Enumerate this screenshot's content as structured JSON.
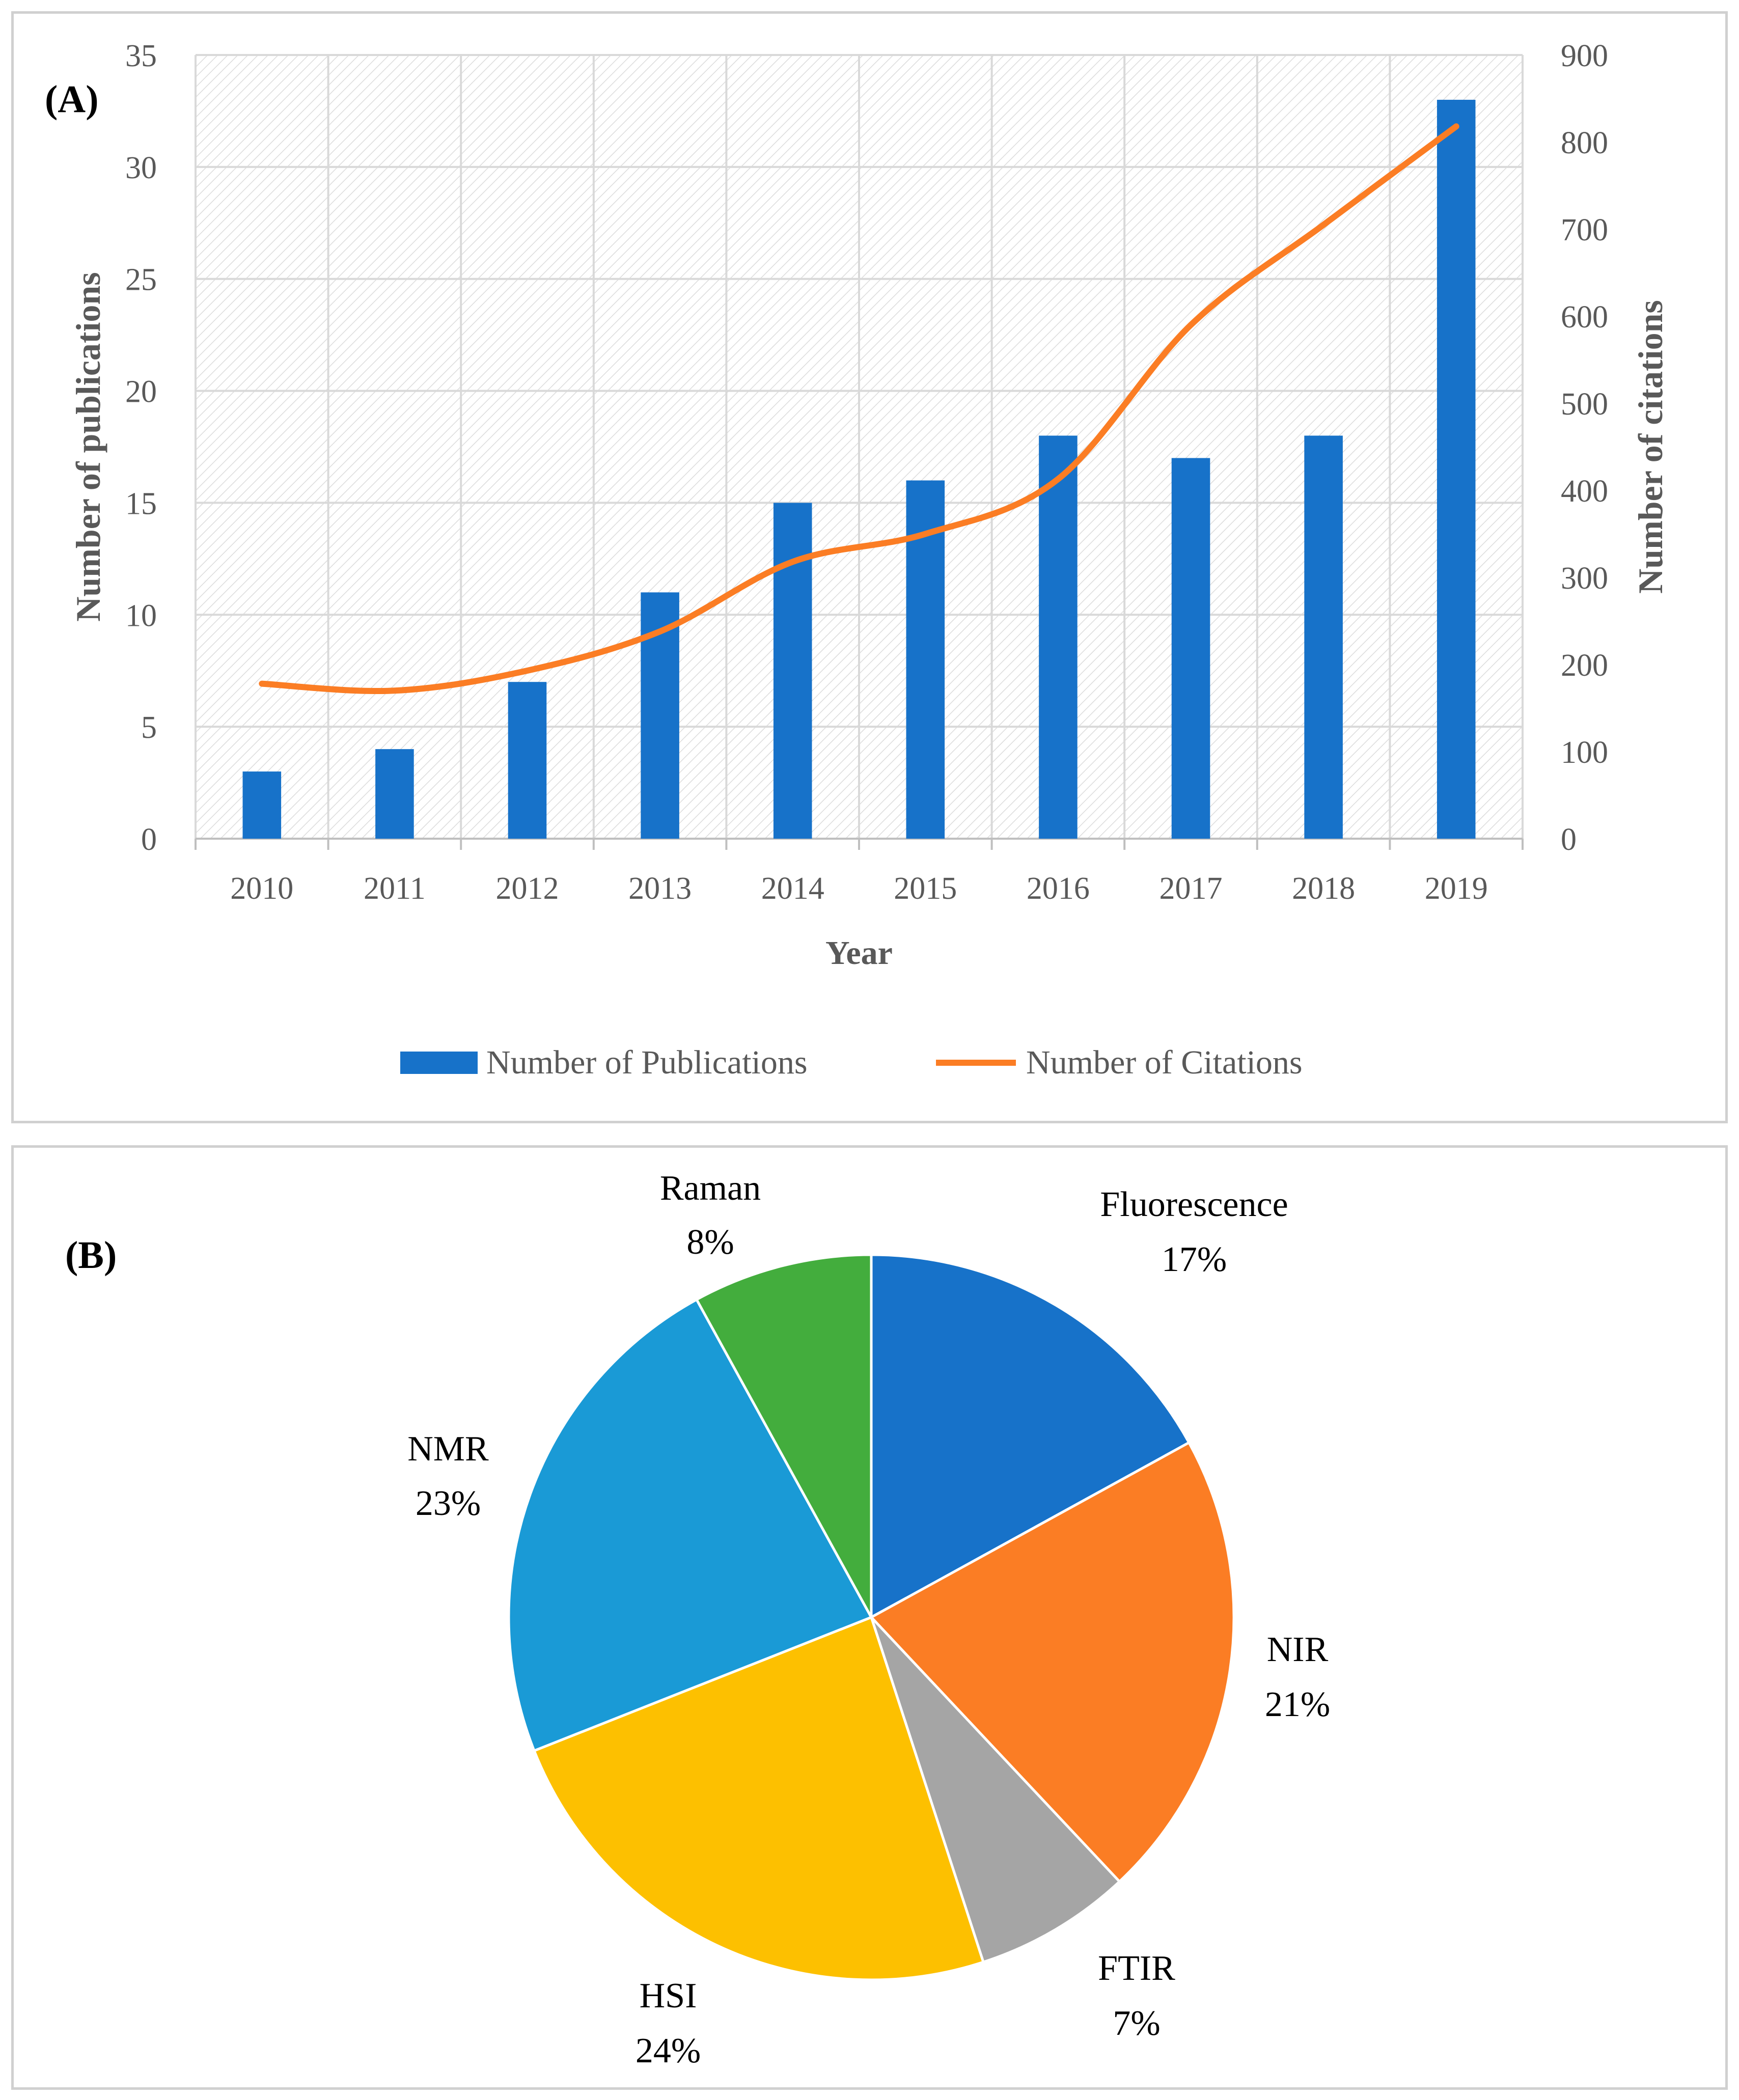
{
  "chart_data": [
    {
      "type": "bar",
      "panel_label": "(A)",
      "categories": [
        "2010",
        "2011",
        "2012",
        "2013",
        "2014",
        "2015",
        "2016",
        "2017",
        "2018",
        "2019"
      ],
      "xlabel": "Year",
      "ylabel": "Number of publications",
      "y2label": "Number of citations",
      "ylim": [
        0,
        35
      ],
      "y2lim": [
        0,
        900
      ],
      "yticks": [
        0,
        5,
        10,
        15,
        20,
        25,
        30,
        35
      ],
      "y2ticks": [
        0,
        100,
        200,
        300,
        400,
        500,
        600,
        700,
        800,
        900
      ],
      "grid": true,
      "legend_position": "bottom",
      "series": [
        {
          "name": "Number of Publications",
          "kind": "bar",
          "axis": "left",
          "color": "#1772c9",
          "values": [
            3,
            4,
            7,
            11,
            15,
            16,
            18,
            17,
            18,
            33
          ]
        },
        {
          "name": "Number of Citations",
          "kind": "line",
          "axis": "right",
          "color": "#fb7d24",
          "values": [
            178,
            170,
            193,
            238,
            318,
            350,
            413,
            590,
            705,
            818
          ]
        }
      ]
    },
    {
      "type": "pie",
      "panel_label": "(B)",
      "slices": [
        {
          "label": "Fluorescence",
          "value": 17,
          "value_label": "17%",
          "color": "#1772c9"
        },
        {
          "label": "NIR",
          "value": 21,
          "value_label": "21%",
          "color": "#fb7d24"
        },
        {
          "label": "FTIR",
          "value": 7,
          "value_label": "7%",
          "color": "#a5a5a5"
        },
        {
          "label": "HSI",
          "value": 24,
          "value_label": "24%",
          "color": "#fdc000"
        },
        {
          "label": "NMR",
          "value": 23,
          "value_label": "23%",
          "color": "#1a9ad6"
        },
        {
          "label": "Raman",
          "value": 8,
          "value_label": "8%",
          "color": "#43ad3d"
        }
      ]
    }
  ]
}
